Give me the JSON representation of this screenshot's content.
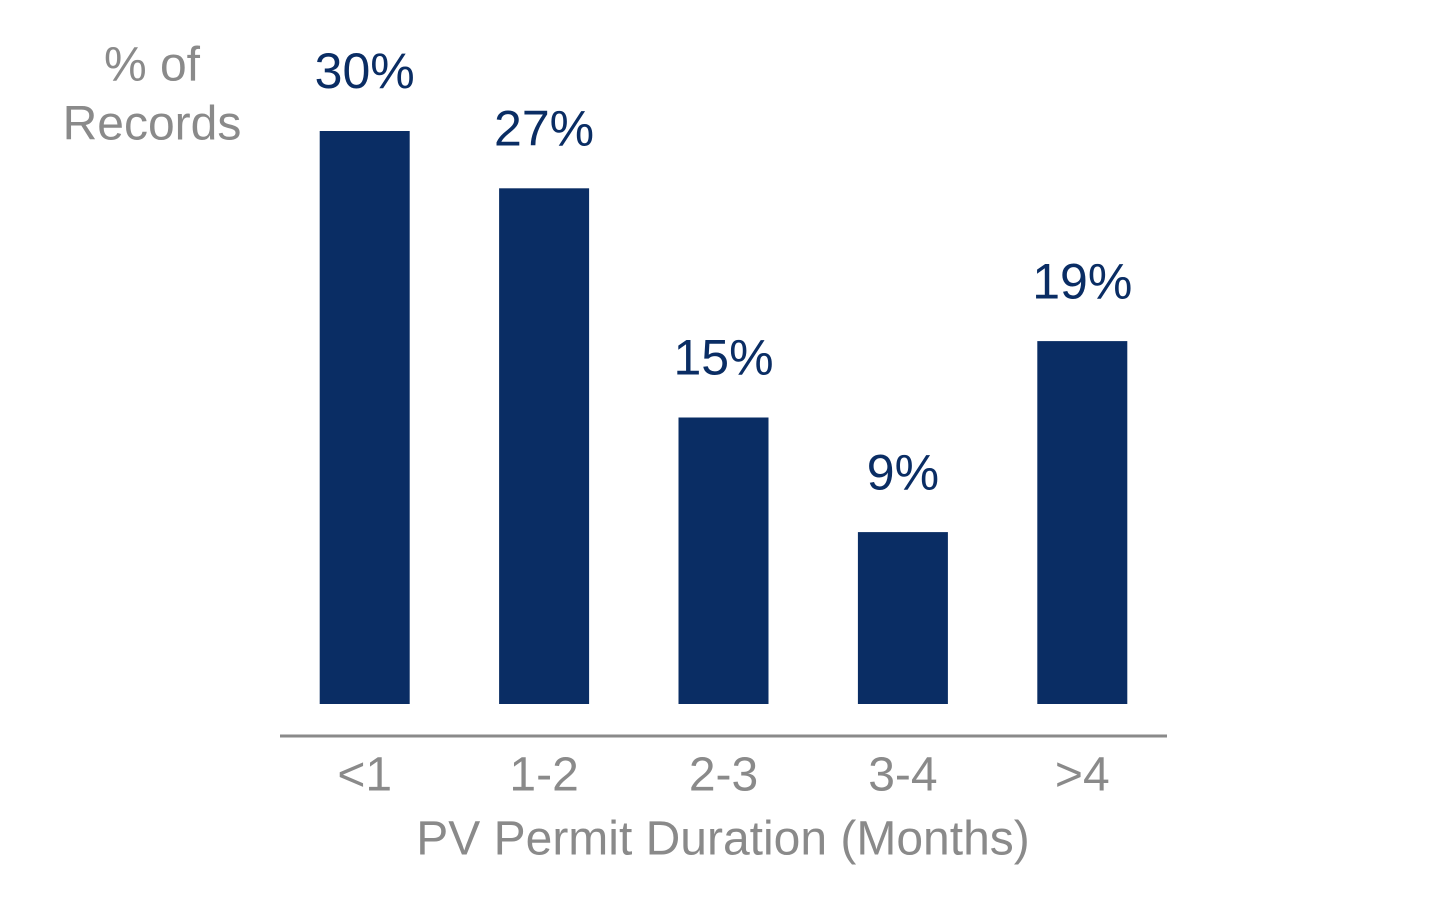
{
  "chart_data": {
    "type": "bar",
    "y_label": [
      "% of",
      "Records"
    ],
    "x_label": "PV Permit Duration (Months)",
    "categories": [
      "<1",
      "1-2",
      "2-3",
      "3-4",
      ">4"
    ],
    "values": [
      30,
      27,
      15,
      9,
      19
    ],
    "value_labels": [
      "30%",
      "27%",
      "15%",
      "9%",
      "19%"
    ],
    "color": "#0a2d64"
  }
}
